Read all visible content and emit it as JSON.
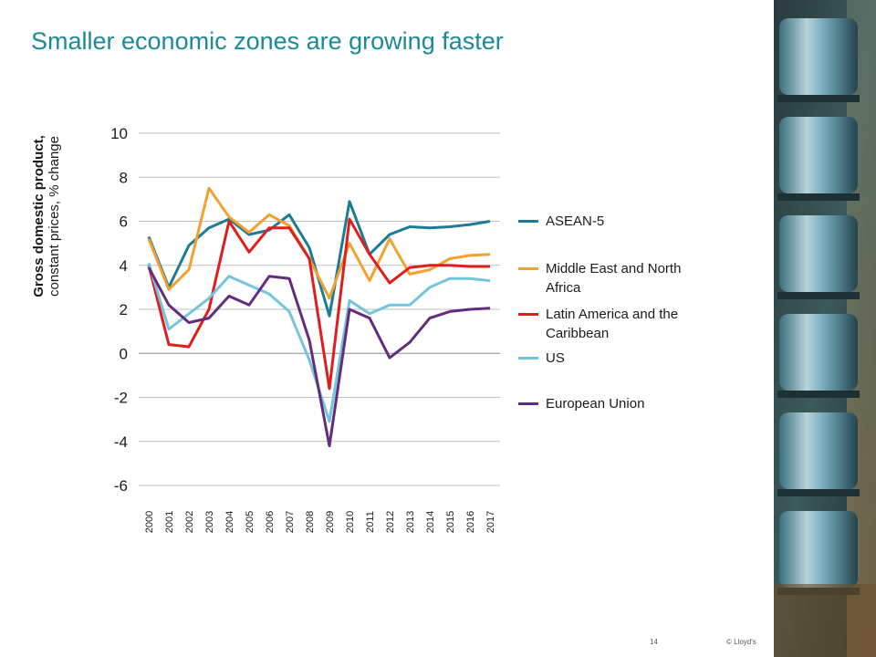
{
  "slide": {
    "title": "Smaller economic zones are growing faster",
    "page_number": "14",
    "copyright": "© Lloyd's"
  },
  "colors": {
    "title": "#1b8a98",
    "asean5": "#1c7c96",
    "mena": "#f2a12e",
    "latam": "#e01d1d",
    "us": "#74c5dc",
    "eu": "#632c7c"
  },
  "chart_data": {
    "type": "line",
    "title": "",
    "ylabel_bold": "Gross domestic product,",
    "ylabel_rest": "constant prices, % change",
    "xlabel": "",
    "ylim": [
      -6,
      10
    ],
    "yticks": [
      10,
      8,
      6,
      4,
      2,
      0,
      -2,
      -4,
      -6
    ],
    "grid": true,
    "legend_position": "right",
    "x": [
      "2000",
      "2001",
      "2002",
      "2003",
      "2004",
      "2005",
      "2006",
      "2007",
      "2008",
      "2009",
      "2010",
      "2011",
      "2012",
      "2013",
      "2014",
      "2015",
      "2016",
      "2017"
    ],
    "series": [
      {
        "name": "ASEAN-5",
        "color_key": "asean5",
        "values": [
          5.3,
          3.0,
          4.9,
          5.7,
          6.1,
          5.4,
          5.6,
          6.3,
          4.8,
          1.7,
          6.9,
          4.5,
          5.4,
          5.75,
          5.7,
          5.75,
          5.85,
          6.0
        ]
      },
      {
        "name": "Middle East and North Africa",
        "color_key": "mena",
        "values": [
          5.2,
          2.9,
          3.8,
          7.5,
          6.2,
          5.5,
          6.3,
          5.8,
          4.3,
          2.5,
          5.0,
          3.3,
          5.2,
          3.6,
          3.8,
          4.3,
          4.45,
          4.5
        ]
      },
      {
        "name": "Latin America and the Caribbean",
        "color_key": "latam",
        "values": [
          4.0,
          0.4,
          0.3,
          2.0,
          6.0,
          4.6,
          5.7,
          5.7,
          4.3,
          -1.6,
          6.1,
          4.5,
          3.2,
          3.9,
          4.0,
          4.0,
          3.95,
          3.95
        ]
      },
      {
        "name": "US",
        "color_key": "us",
        "values": [
          4.1,
          1.1,
          1.8,
          2.5,
          3.5,
          3.1,
          2.7,
          1.9,
          -0.3,
          -3.1,
          2.4,
          1.8,
          2.2,
          2.2,
          3.0,
          3.4,
          3.4,
          3.3
        ]
      },
      {
        "name": "European Union",
        "color_key": "eu",
        "values": [
          3.9,
          2.2,
          1.4,
          1.6,
          2.6,
          2.2,
          3.5,
          3.4,
          0.6,
          -4.2,
          2.0,
          1.6,
          -0.2,
          0.5,
          1.6,
          1.9,
          2.0,
          2.05
        ]
      }
    ]
  }
}
